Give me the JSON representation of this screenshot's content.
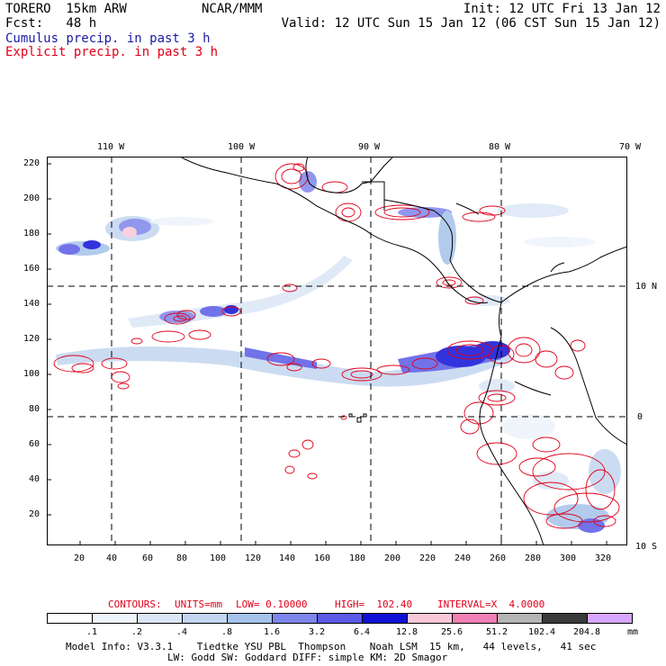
{
  "header": {
    "model": "TORERO  15km ARW",
    "org": "NCAR/MMM",
    "init": "Init: 12 UTC Fri 13 Jan 12",
    "fcst": "Fcst:   48 h",
    "valid": "Valid: 12 UTC Sun 15 Jan 12 (06 CST Sun 15 Jan 12)",
    "cumulus": "Cumulus precip. in past 3 h",
    "explicit": "Explicit precip. in past 3 h"
  },
  "axes": {
    "lon_labels": [
      "110 W",
      "100 W",
      "90 W",
      "80 W",
      "70 W"
    ],
    "lat_labels": [
      "10 N",
      "0",
      "10 S"
    ],
    "y_ticks": [
      "220",
      "200",
      "180",
      "160",
      "140",
      "120",
      "100",
      "80",
      "60",
      "40",
      "20"
    ],
    "x_ticks": [
      "20",
      "40",
      "60",
      "80",
      "100",
      "120",
      "140",
      "160",
      "180",
      "200",
      "220",
      "240",
      "260",
      "280",
      "300",
      "320"
    ]
  },
  "contours": {
    "prefix": "CONTOURS:",
    "units": "UNITS=mm",
    "low": "LOW= 0.10000",
    "high": "HIGH=  102.40",
    "interval": "INTERVAL=X  4.0000"
  },
  "colorbar": {
    "labels": [
      ".1",
      ".2",
      ".4",
      ".8",
      "1.6",
      "3.2",
      "6.4",
      "12.8",
      "25.6",
      "51.2",
      "102.4",
      "204.8"
    ],
    "unit": "mm",
    "colors": [
      "#ffffff",
      "#eef4fb",
      "#dbe7f6",
      "#c2d6f0",
      "#a5c2ea",
      "#7d86ea",
      "#5a5ae6",
      "#1010d8",
      "#f8c8d8",
      "#f080b4",
      "#b4b4b4",
      "#3a3a3a",
      "#d7a6ff"
    ]
  },
  "footer": {
    "line1": "Model Info: V3.3.1    Tiedtke YSU PBL  Thompson    Noah LSM  15 km,   44 levels,   41 sec",
    "line2": "LW: Godd SW: Goddard DIFF: simple KM: 2D Smagor"
  }
}
